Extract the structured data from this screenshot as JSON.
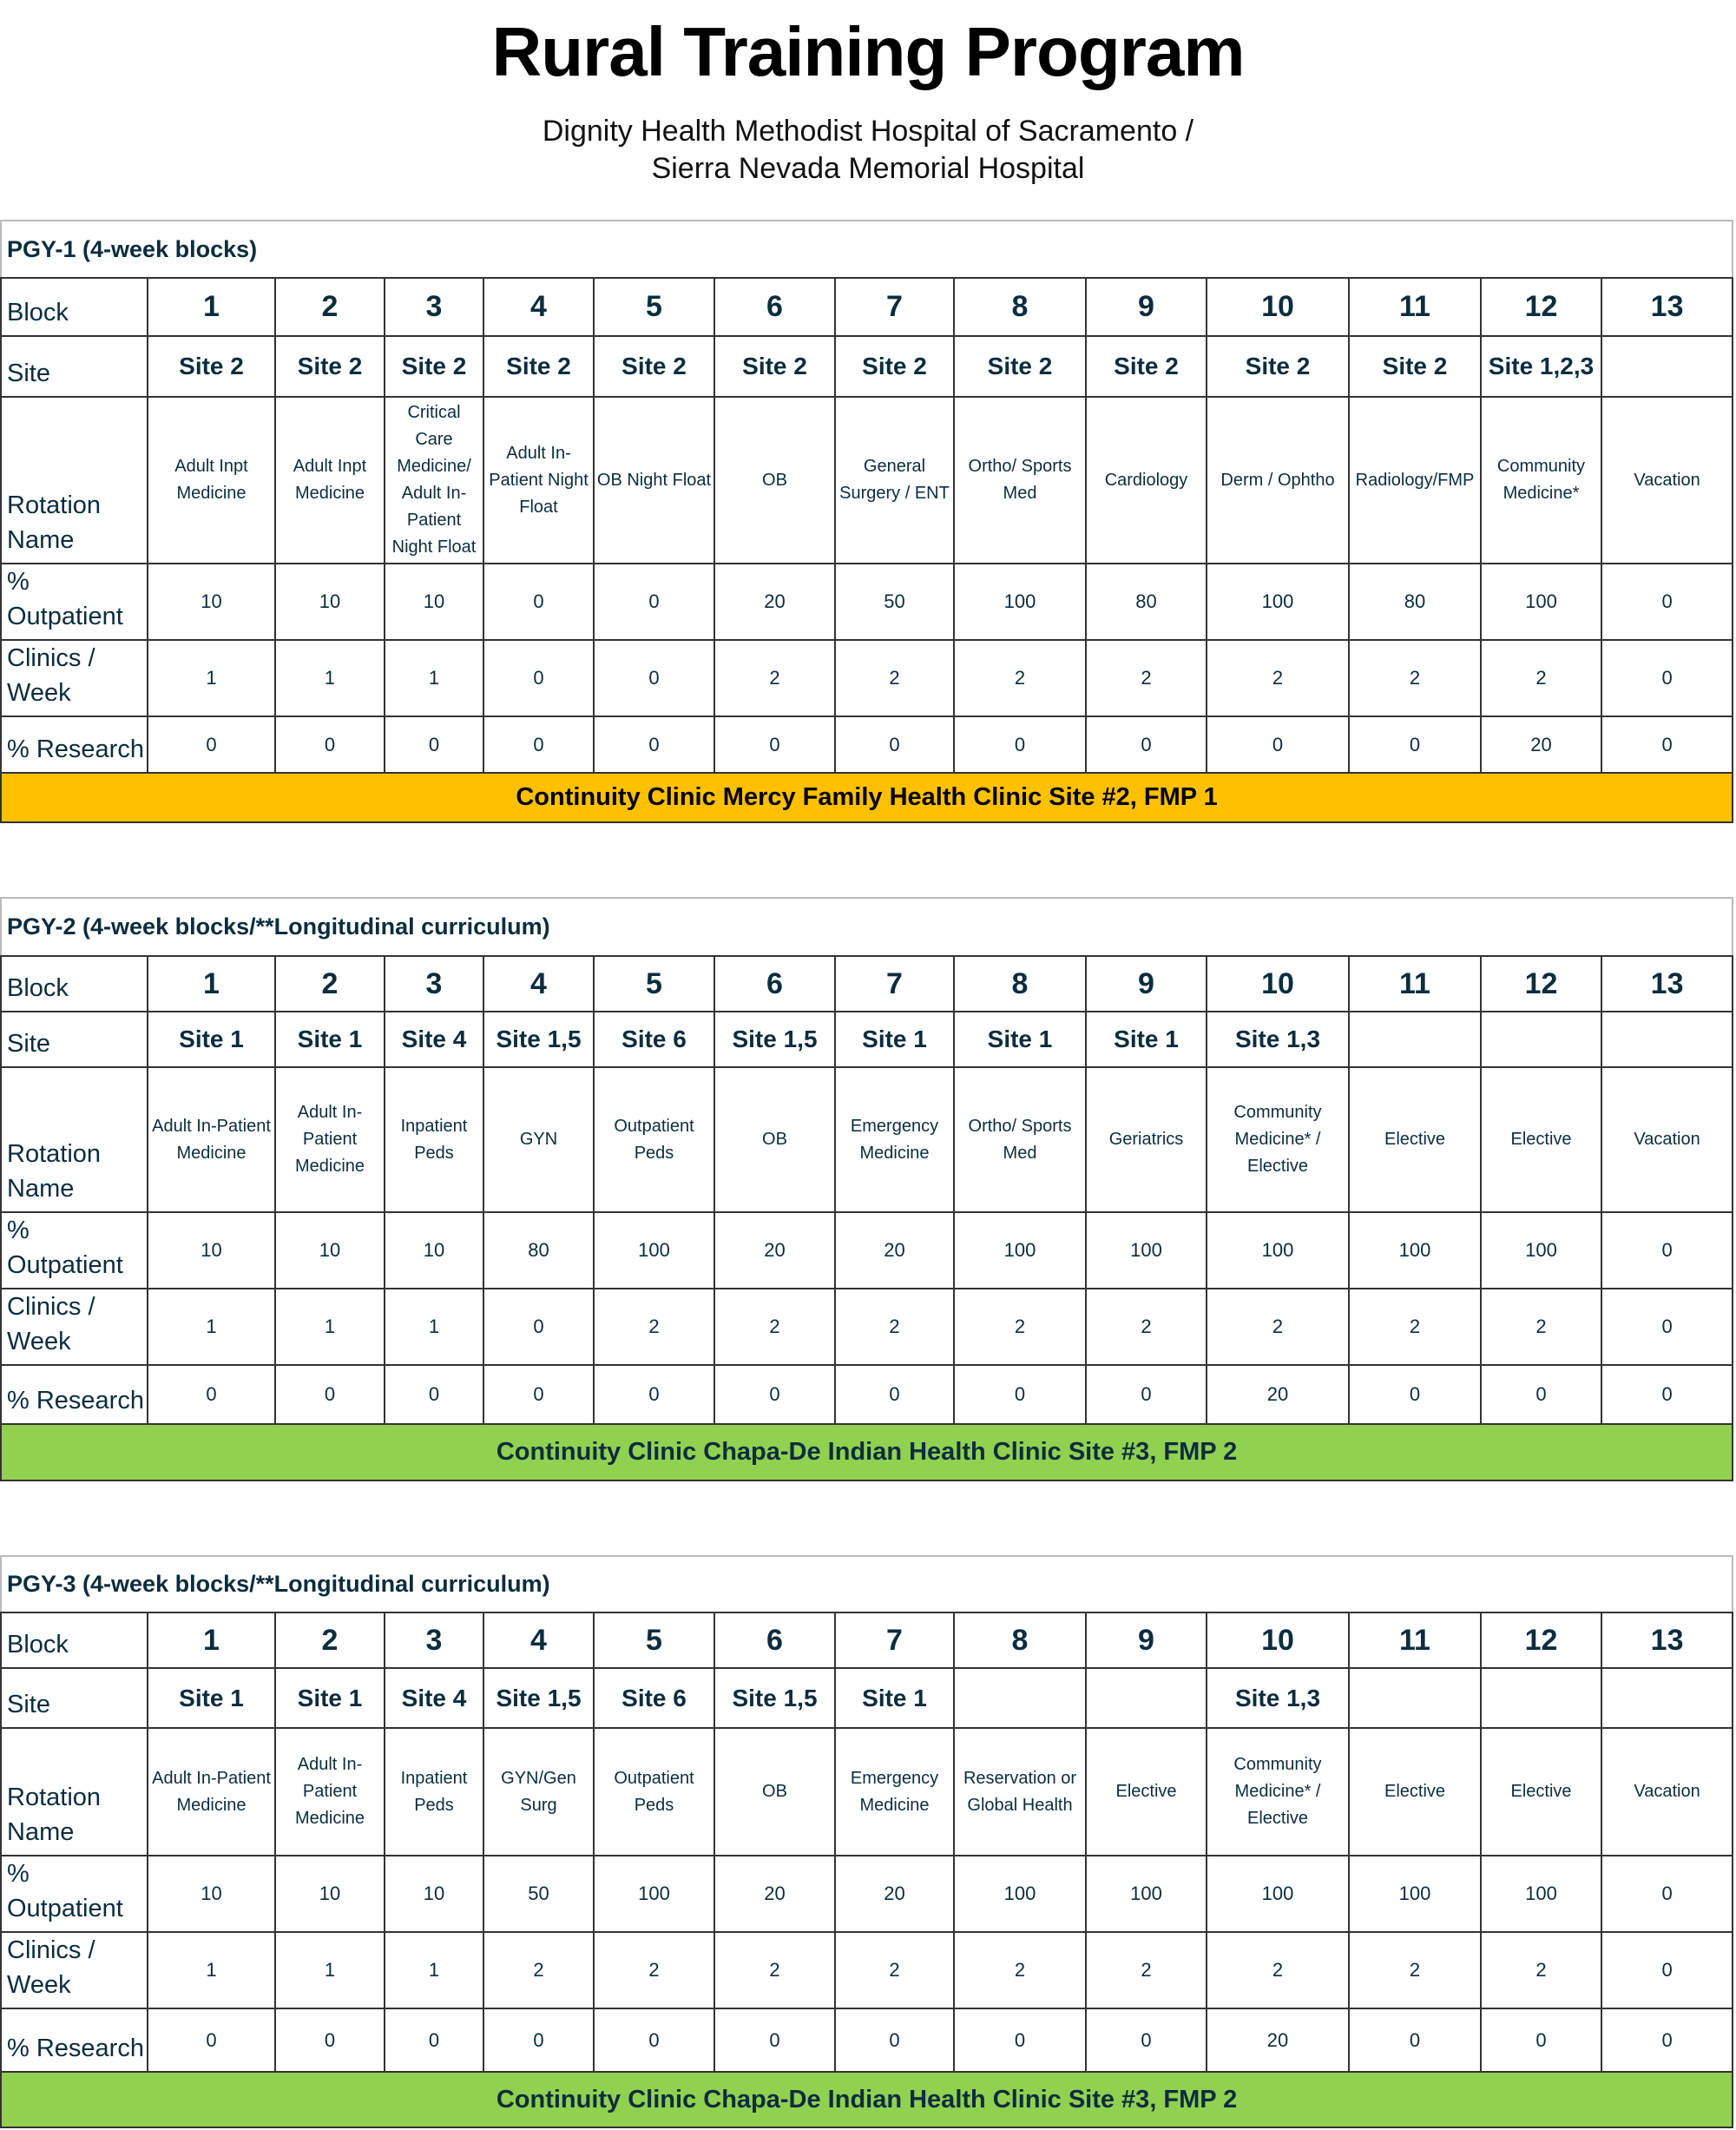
{
  "header": {
    "title": "Rural Training Program",
    "subtitle_line1": "Dignity Health Methodist Hospital of Sacramento /",
    "subtitle_line2": "Sierra Nevada Memorial Hospital"
  },
  "row_labels": {
    "block": "Block",
    "site": "Site",
    "rotation": "Rotation Name",
    "outpatient": "% Outpatient",
    "clinics": "Clinics / Week",
    "research": "% Research"
  },
  "colors": {
    "text": "#0b2d3e",
    "pgy1_banner": "#FFC000",
    "pgy2_banner": "#92D050",
    "pgy3_banner": "#92D050"
  },
  "sections": [
    {
      "title": "PGY-1 (4-week blocks)",
      "blocks": [
        "1",
        "2",
        "3",
        "4",
        "5",
        "6",
        "7",
        "8",
        "9",
        "10",
        "11",
        "12",
        "13"
      ],
      "sites": [
        "Site 2",
        "Site 2",
        "Site 2",
        "Site 2",
        "Site 2",
        "Site 2",
        "Site 2",
        "Site 2",
        "Site 2",
        "Site 2",
        "Site 2",
        "Site 1,2,3",
        ""
      ],
      "rotations": [
        "Adult Inpt Medicine",
        "Adult Inpt Medicine",
        "Critical Care Medicine/ Adult In-Patient Night Float",
        "Adult In-Patient Night Float",
        "OB Night Float",
        "OB",
        "General Surgery / ENT",
        "Ortho/ Sports Med",
        "Cardiology",
        "Derm / Ophtho",
        "Radiology/FMP",
        "Community Medicine*",
        "Vacation"
      ],
      "outpatient": [
        "10",
        "10",
        "10",
        "0",
        "0",
        "20",
        "50",
        "100",
        "80",
        "100",
        "80",
        "100",
        "0"
      ],
      "clinics": [
        "1",
        "1",
        "1",
        "0",
        "0",
        "2",
        "2",
        "2",
        "2",
        "2",
        "2",
        "2",
        "0"
      ],
      "research": [
        "0",
        "0",
        "0",
        "0",
        "0",
        "0",
        "0",
        "0",
        "0",
        "0",
        "0",
        "20",
        "0"
      ],
      "banner": "Continuity Clinic Mercy Family Health Clinic Site #2, FMP 1",
      "banner_color": "#FFC000",
      "banner_text_color": "#000000"
    },
    {
      "title": "PGY-2 (4-week blocks/**Longitudinal curriculum)",
      "blocks": [
        "1",
        "2",
        "3",
        "4",
        "5",
        "6",
        "7",
        "8",
        "9",
        "10",
        "11",
        "12",
        "13"
      ],
      "sites": [
        "Site 1",
        "Site 1",
        "Site 4",
        "Site 1,5",
        "Site 6",
        "Site 1,5",
        "Site 1",
        "Site 1",
        "Site 1",
        "Site 1,3",
        "",
        "",
        ""
      ],
      "rotations": [
        "Adult In-Patient Medicine",
        "Adult In-Patient Medicine",
        "Inpatient Peds",
        "GYN",
        "Outpatient Peds",
        "OB",
        "Emergency Medicine",
        "Ortho/ Sports Med",
        "Geriatrics",
        "Community Medicine* / Elective",
        "Elective",
        "Elective",
        "Vacation"
      ],
      "outpatient": [
        "10",
        "10",
        "10",
        "80",
        "100",
        "20",
        "20",
        "100",
        "100",
        "100",
        "100",
        "100",
        "0"
      ],
      "clinics": [
        "1",
        "1",
        "1",
        "0",
        "2",
        "2",
        "2",
        "2",
        "2",
        "2",
        "2",
        "2",
        "0"
      ],
      "research": [
        "0",
        "0",
        "0",
        "0",
        "0",
        "0",
        "0",
        "0",
        "0",
        "20",
        "0",
        "0",
        "0"
      ],
      "banner": "Continuity Clinic Chapa-De Indian Health Clinic Site #3, FMP 2",
      "banner_color": "#92D050",
      "banner_text_color": "#0b2d3e"
    },
    {
      "title": "PGY-3 (4-week blocks/**Longitudinal curriculum)",
      "blocks": [
        "1",
        "2",
        "3",
        "4",
        "5",
        "6",
        "7",
        "8",
        "9",
        "10",
        "11",
        "12",
        "13"
      ],
      "sites": [
        "Site 1",
        "Site 1",
        "Site 4",
        "Site 1,5",
        "Site 6",
        "Site 1,5",
        "Site 1",
        "",
        "",
        "Site 1,3",
        "",
        "",
        ""
      ],
      "rotations": [
        "Adult In-Patient Medicine",
        "Adult In-Patient Medicine",
        "Inpatient Peds",
        "GYN/Gen Surg",
        "Outpatient Peds",
        "OB",
        "Emergency Medicine",
        "Reservation or Global Health",
        "Elective",
        "Community Medicine* / Elective",
        "Elective",
        "Elective",
        "Vacation"
      ],
      "outpatient": [
        "10",
        "10",
        "10",
        "50",
        "100",
        "20",
        "20",
        "100",
        "100",
        "100",
        "100",
        "100",
        "0"
      ],
      "clinics": [
        "1",
        "1",
        "1",
        "2",
        "2",
        "2",
        "2",
        "2",
        "2",
        "2",
        "2",
        "2",
        "0"
      ],
      "research": [
        "0",
        "0",
        "0",
        "0",
        "0",
        "0",
        "0",
        "0",
        "0",
        "20",
        "0",
        "0",
        "0"
      ],
      "banner": "Continuity Clinic Chapa-De Indian Health Clinic Site #3, FMP 2",
      "banner_color": "#92D050",
      "banner_text_color": "#0b2d3e"
    }
  ]
}
